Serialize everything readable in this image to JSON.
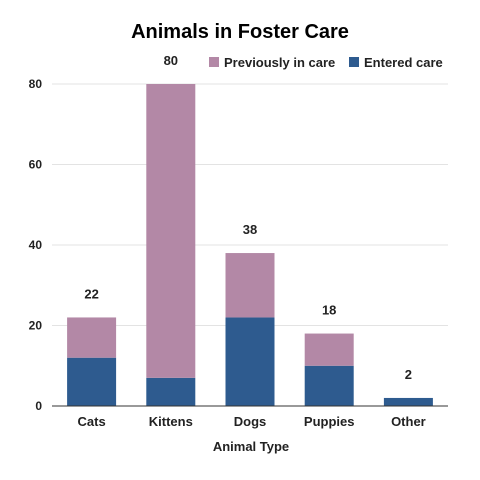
{
  "chart_data": {
    "type": "bar",
    "stacked": true,
    "title": "Animals in Foster Care",
    "xlabel": "Animal Type",
    "ylabel": "",
    "categories": [
      "Cats",
      "Kittens",
      "Dogs",
      "Puppies",
      "Other"
    ],
    "series": [
      {
        "name": "Entered care",
        "values": [
          12,
          7,
          22,
          10,
          2
        ],
        "color": "#2e5b8f"
      },
      {
        "name": "Previously in care",
        "values": [
          10,
          73,
          16,
          8,
          0
        ],
        "color": "#b388a6"
      }
    ],
    "totals": [
      "22",
      "80",
      "38",
      "18",
      "2"
    ],
    "ylim": [
      0,
      80
    ],
    "yticks": [
      0,
      20,
      40,
      60,
      80
    ],
    "grid": true,
    "legend_position": "top-right",
    "legend_order": [
      "Previously in care",
      "Entered care"
    ]
  }
}
